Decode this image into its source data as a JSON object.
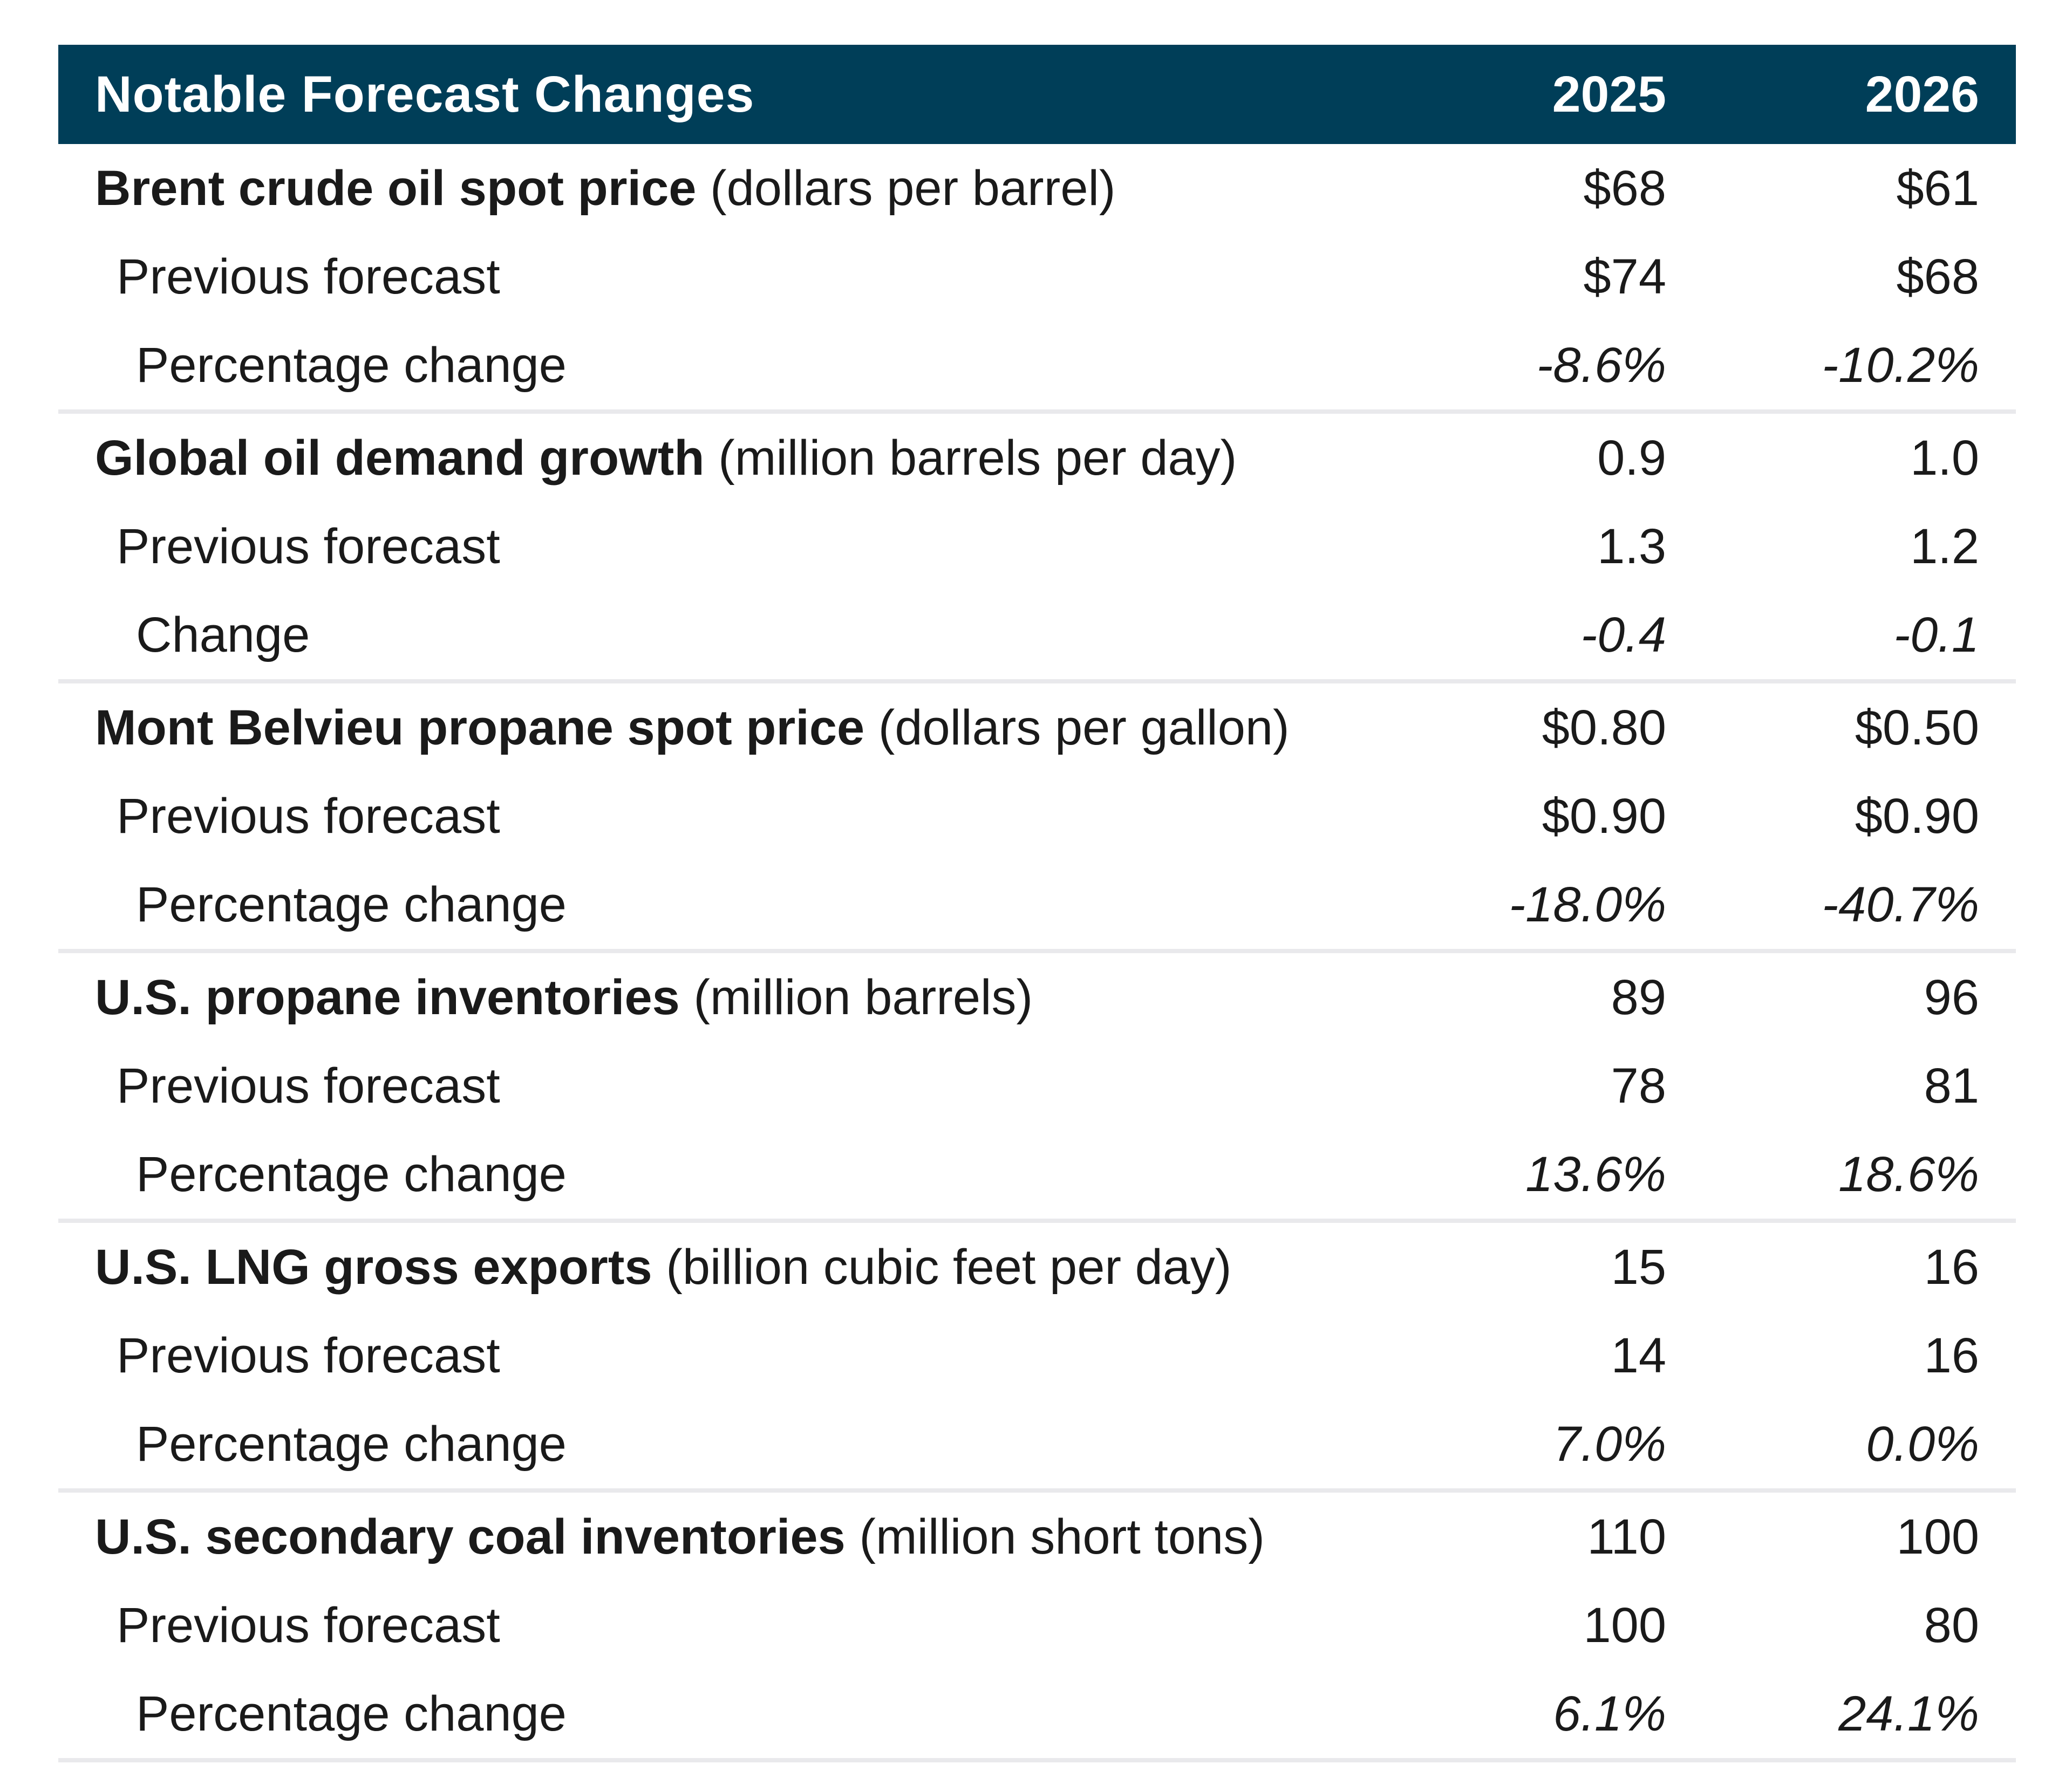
{
  "table": {
    "title": "Notable Forecast Changes",
    "columns": [
      "2025",
      "2026"
    ],
    "sections": [
      {
        "label": "Brent crude oil spot price",
        "unit": "(dollars per barrel)",
        "values": [
          "$68",
          "$61"
        ],
        "rows": [
          {
            "label": "Previous forecast",
            "values": [
              "$74",
              "$68"
            ]
          },
          {
            "label": "Percentage change",
            "values": [
              "-8.6%",
              "-10.2%"
            ]
          }
        ]
      },
      {
        "label": "Global oil demand growth",
        "unit": "(million barrels per day)",
        "values": [
          "0.9",
          "1.0"
        ],
        "rows": [
          {
            "label": "Previous forecast",
            "values": [
              "1.3",
              "1.2"
            ]
          },
          {
            "label": "Change",
            "values": [
              "-0.4",
              "-0.1"
            ]
          }
        ]
      },
      {
        "label": "Mont Belvieu propane spot price",
        "unit": "(dollars per gallon)",
        "values": [
          "$0.80",
          "$0.50"
        ],
        "rows": [
          {
            "label": "Previous forecast",
            "values": [
              "$0.90",
              "$0.90"
            ]
          },
          {
            "label": "Percentage change",
            "values": [
              "-18.0%",
              "-40.7%"
            ]
          }
        ]
      },
      {
        "label": "U.S. propane inventories",
        "unit": "(million barrels)",
        "values": [
          "89",
          "96"
        ],
        "rows": [
          {
            "label": "Previous forecast",
            "values": [
              "78",
              "81"
            ]
          },
          {
            "label": "Percentage change",
            "values": [
              "13.6%",
              "18.6%"
            ]
          }
        ]
      },
      {
        "label": "U.S. LNG gross exports",
        "unit": "(billion cubic feet per day)",
        "values": [
          "15",
          "16"
        ],
        "rows": [
          {
            "label": "Previous forecast",
            "values": [
              "14",
              "16"
            ]
          },
          {
            "label": "Percentage change",
            "values": [
              "7.0%",
              "0.0%"
            ]
          }
        ]
      },
      {
        "label": "U.S. secondary coal inventories",
        "unit": "(million short tons)",
        "values": [
          "110",
          "100"
        ],
        "rows": [
          {
            "label": "Previous forecast",
            "values": [
              "100",
              "80"
            ]
          },
          {
            "label": "Percentage change",
            "values": [
              "6.1%",
              "24.1%"
            ]
          }
        ]
      }
    ]
  },
  "colors": {
    "header_bg": "#003E58",
    "header_text": "#FFFFFF",
    "body_text": "#1A1A1A",
    "separator": "#E9E9EC"
  }
}
